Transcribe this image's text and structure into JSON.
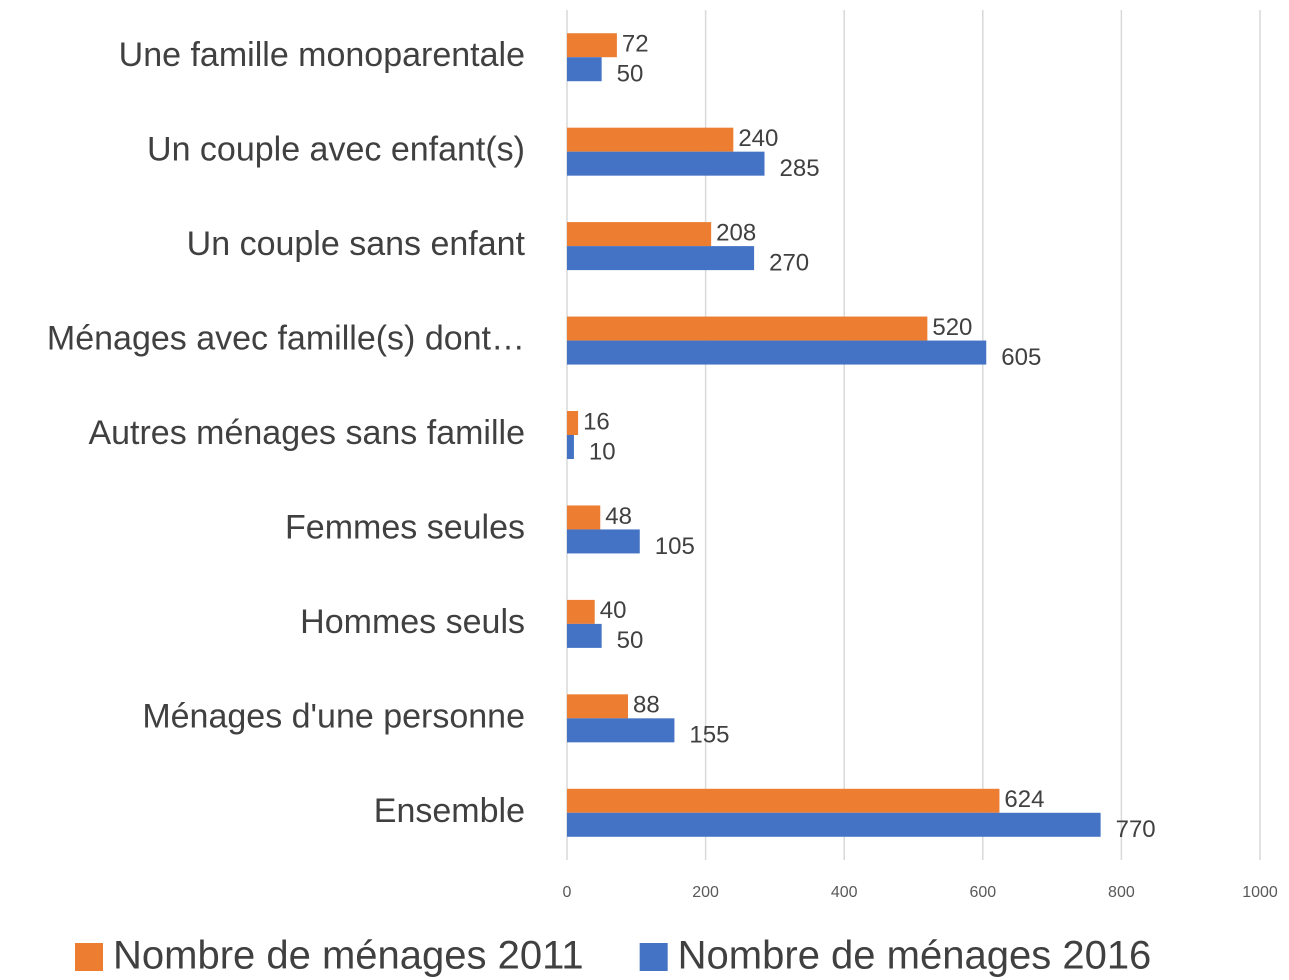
{
  "chart_data": {
    "type": "hbar",
    "categories": [
      "Une famille monoparentale",
      "Un couple avec enfant(s)",
      "Un couple sans enfant",
      "Ménages avec famille(s) dont…",
      "Autres ménages sans famille",
      "Femmes seules",
      "Hommes seuls",
      "Ménages d'une personne",
      "Ensemble"
    ],
    "series": [
      {
        "name": "Nombre de ménages 2011",
        "color": "#ed7d31",
        "values": [
          72,
          240,
          208,
          520,
          16,
          48,
          40,
          88,
          624
        ]
      },
      {
        "name": "Nombre de ménages 2016",
        "color": "#4472c4",
        "values": [
          50,
          285,
          270,
          605,
          10,
          105,
          50,
          155,
          770
        ]
      }
    ],
    "xlim": [
      0,
      1000
    ],
    "xticks": [
      0,
      200,
      400,
      600,
      800,
      1000
    ],
    "grid": true,
    "legend": "bottom"
  }
}
